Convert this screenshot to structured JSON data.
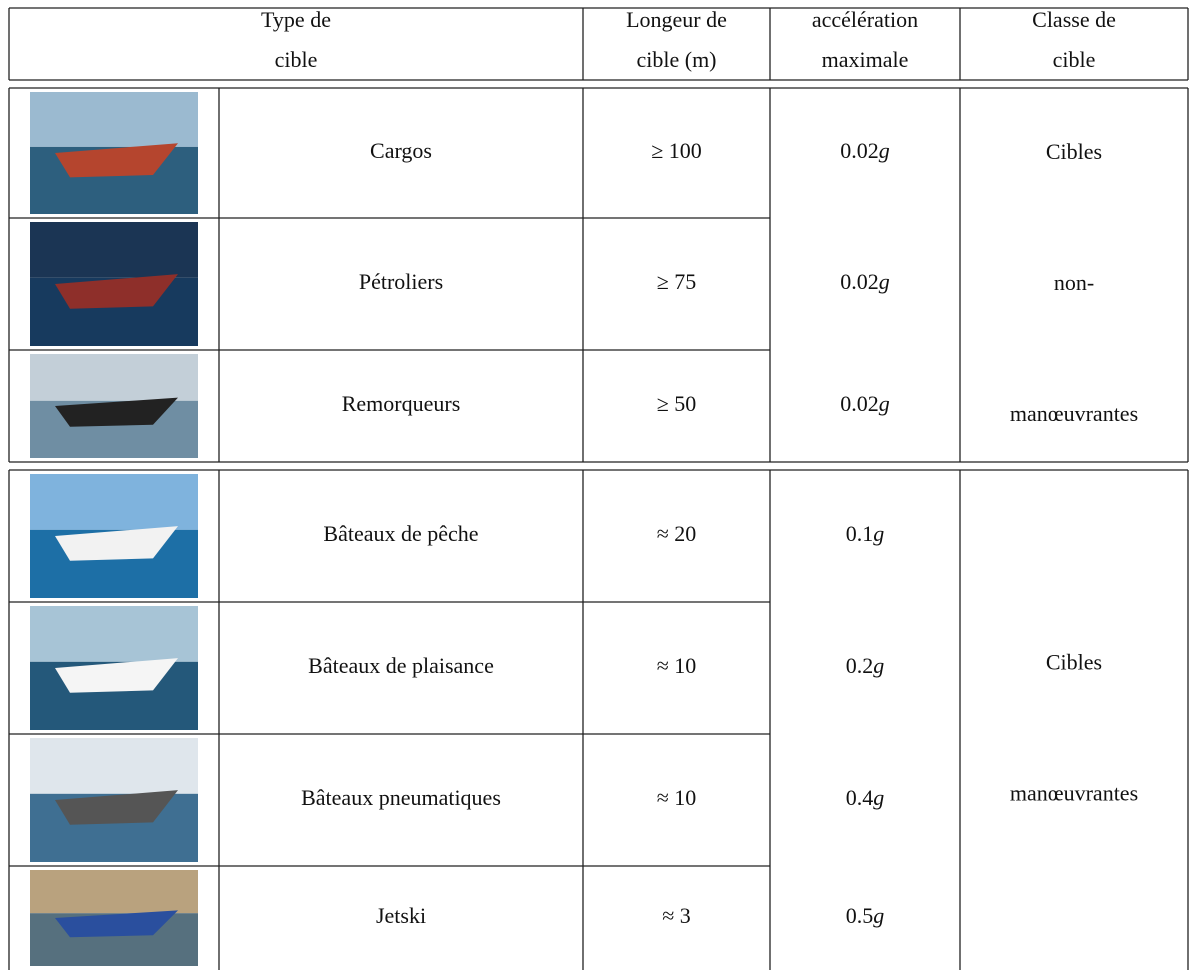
{
  "header": [
    {
      "lines": [
        "Type de",
        "cible"
      ]
    },
    {
      "lines": [
        "Longeur de",
        "cible (m)"
      ]
    },
    {
      "lines": [
        "accélération",
        "maximale"
      ]
    },
    {
      "lines": [
        "Classe de",
        "cible"
      ]
    }
  ],
  "groups": [
    {
      "rows": [
        {
          "name": "Cargos",
          "length": "≥ 100",
          "acceleration": "0.02g"
        },
        {
          "name": "Pétroliers",
          "length": "≥ 75",
          "acceleration": "0.02g"
        },
        {
          "name": "Remorqueurs",
          "length": "≥ 50",
          "acceleration": "0.02g"
        }
      ],
      "class_lines": [
        "Cibles",
        "non-",
        "manœuvrantes"
      ]
    },
    {
      "rows": [
        {
          "name": "Bâteaux de pêche",
          "length": "≈ 20",
          "acceleration": "0.1g"
        },
        {
          "name": "Bâteaux de plaisance",
          "length": "≈ 10",
          "acceleration": "0.2g"
        },
        {
          "name": "Bâteaux pneumatiques",
          "length": "≈ 10",
          "acceleration": "0.4g"
        },
        {
          "name": "Jetski",
          "length": "≈ 3",
          "acceleration": "0.5g"
        }
      ],
      "class_lines": [
        "Cibles",
        "manœuvrantes"
      ]
    }
  ]
}
